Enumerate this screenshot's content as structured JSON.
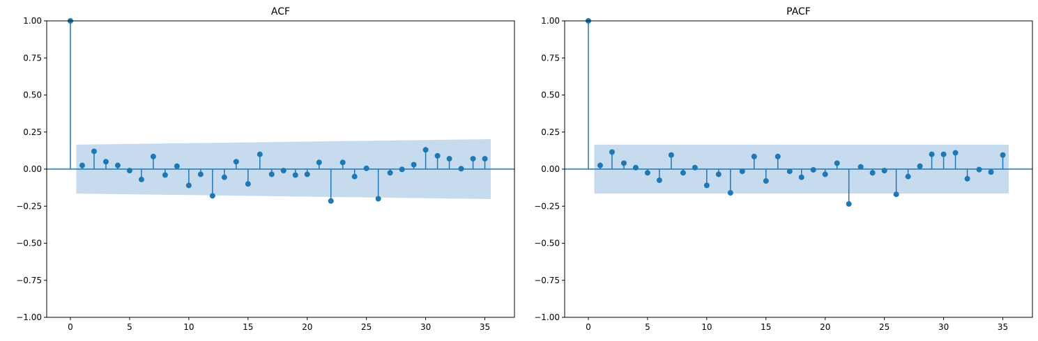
{
  "chart_data": [
    {
      "type": "stem",
      "title": "ACF",
      "xlabel": "",
      "ylabel": "",
      "xlim": [
        -2,
        37.5
      ],
      "ylim": [
        -1.0,
        1.0
      ],
      "xticks": [
        0,
        5,
        10,
        15,
        20,
        25,
        30,
        35
      ],
      "xtick_labels": [
        "0",
        "5",
        "10",
        "15",
        "20",
        "25",
        "30",
        "35"
      ],
      "yticks": [
        -1.0,
        -0.75,
        -0.5,
        -0.25,
        0.0,
        0.25,
        0.5,
        0.75,
        1.0
      ],
      "ytick_labels": [
        "−1.00",
        "−0.75",
        "−0.50",
        "−0.25",
        "0.00",
        "0.25",
        "0.50",
        "0.75",
        "1.00"
      ],
      "lags": [
        0,
        1,
        2,
        3,
        4,
        5,
        6,
        7,
        8,
        9,
        10,
        11,
        12,
        13,
        14,
        15,
        16,
        17,
        18,
        19,
        20,
        21,
        22,
        23,
        24,
        25,
        26,
        27,
        28,
        29,
        30,
        31,
        32,
        33,
        34,
        35
      ],
      "values": [
        1.0,
        0.025,
        0.12,
        0.05,
        0.025,
        -0.01,
        -0.07,
        0.085,
        -0.04,
        0.02,
        -0.11,
        -0.035,
        -0.18,
        -0.055,
        0.05,
        -0.1,
        0.1,
        -0.035,
        -0.01,
        -0.04,
        -0.035,
        0.045,
        -0.215,
        0.045,
        -0.05,
        0.005,
        -0.2,
        -0.025,
        -0.002,
        0.03,
        0.13,
        0.09,
        0.07,
        0.003,
        0.07,
        0.07
      ],
      "confidence_band": {
        "x": [
          0.5,
          35.5
        ],
        "upper": [
          0.165,
          0.202
        ],
        "lower": [
          -0.165,
          -0.202
        ]
      },
      "colors": {
        "stem": "#1f77b4",
        "band": "#c6dbed",
        "zero_line": "#1f77b4"
      },
      "grid": false
    },
    {
      "type": "stem",
      "title": "PACF",
      "xlabel": "",
      "ylabel": "",
      "xlim": [
        -2,
        37.5
      ],
      "ylim": [
        -1.0,
        1.0
      ],
      "xticks": [
        0,
        5,
        10,
        15,
        20,
        25,
        30,
        35
      ],
      "xtick_labels": [
        "0",
        "5",
        "10",
        "15",
        "20",
        "25",
        "30",
        "35"
      ],
      "yticks": [
        -1.0,
        -0.75,
        -0.5,
        -0.25,
        0.0,
        0.25,
        0.5,
        0.75,
        1.0
      ],
      "ytick_labels": [
        "−1.00",
        "−0.75",
        "−0.50",
        "−0.25",
        "0.00",
        "0.25",
        "0.50",
        "0.75",
        "1.00"
      ],
      "lags": [
        0,
        1,
        2,
        3,
        4,
        5,
        6,
        7,
        8,
        9,
        10,
        11,
        12,
        13,
        14,
        15,
        16,
        17,
        18,
        19,
        20,
        21,
        22,
        23,
        24,
        25,
        26,
        27,
        28,
        29,
        30,
        31,
        32,
        33,
        34,
        35
      ],
      "values": [
        1.0,
        0.025,
        0.115,
        0.04,
        0.01,
        -0.025,
        -0.075,
        0.095,
        -0.025,
        0.01,
        -0.11,
        -0.035,
        -0.16,
        -0.015,
        0.085,
        -0.08,
        0.085,
        -0.015,
        -0.055,
        -0.005,
        -0.035,
        0.04,
        -0.235,
        0.015,
        -0.025,
        -0.01,
        -0.17,
        -0.05,
        0.02,
        0.1,
        0.1,
        0.11,
        -0.065,
        -0.003,
        -0.02,
        0.095
      ],
      "confidence_band": {
        "x": [
          0.5,
          35.5
        ],
        "upper": [
          0.165,
          0.165
        ],
        "lower": [
          -0.165,
          -0.165
        ]
      },
      "colors": {
        "stem": "#1f77b4",
        "band": "#c6dbed",
        "zero_line": "#1f77b4"
      },
      "grid": false
    }
  ]
}
